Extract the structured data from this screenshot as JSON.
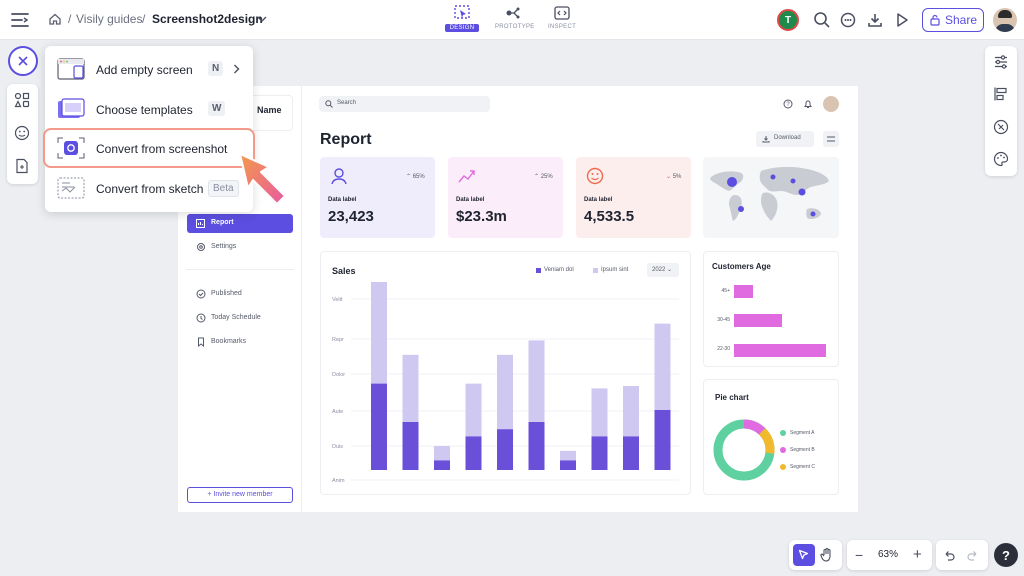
{
  "breadcrumb": {
    "parent": "Visily guides",
    "separator": "/",
    "current": "Screenshot2design"
  },
  "modes": [
    {
      "label": "DESIGN"
    },
    {
      "label": "PROTOTYPE"
    },
    {
      "label": "INSPECT"
    }
  ],
  "user": {
    "initial": "T"
  },
  "share_label": "Share",
  "menu": {
    "items": [
      {
        "label": "Add empty screen",
        "key": "N"
      },
      {
        "label": "Choose templates",
        "key": "W"
      },
      {
        "label": "Convert from screenshot"
      },
      {
        "label": "Convert from sketch",
        "badge": "Beta"
      }
    ]
  },
  "design": {
    "sidebar": {
      "name_fragment": "Name",
      "items": [
        "Report",
        "Settings"
      ],
      "secondary": [
        "Published",
        "Today Schedule",
        "Bookmarks"
      ],
      "invite": "+ Invite new member"
    },
    "search_placeholder": "Search",
    "title": "Report",
    "download": "Download",
    "stats": [
      {
        "label": "Data label",
        "value": "23,423",
        "change": "65%",
        "dir": "up",
        "bg": "#efedfb"
      },
      {
        "label": "Data label",
        "value": "$23.3m",
        "change": "25%",
        "dir": "up",
        "bg": "#fbeefa"
      },
      {
        "label": "Data label",
        "value": "4,533.5",
        "change": "5%",
        "dir": "down",
        "bg": "#fdeeee"
      }
    ],
    "sales": {
      "title": "Sales",
      "legend": [
        "Veniam dol",
        "Ipsum sint"
      ],
      "year": "2022",
      "ylabels": [
        "Velit",
        "Repr",
        "Dolor",
        "Aute",
        "Duis",
        "Anim"
      ]
    },
    "customers": {
      "title": "Customers Age",
      "groups": [
        "45+",
        "30-45",
        "22-30"
      ]
    },
    "pie": {
      "title": "Pie chart",
      "segments": [
        "Segment A",
        "Segment B",
        "Segment C"
      ]
    }
  },
  "zoom": "63%",
  "colors": {
    "accent": "#5b4ee0",
    "bar_dark": "#6a4fd8",
    "bar_light": "#cfc9f2",
    "pink": "#e06be0",
    "green": "#5fd1a0",
    "yellow": "#f1b92e"
  }
}
